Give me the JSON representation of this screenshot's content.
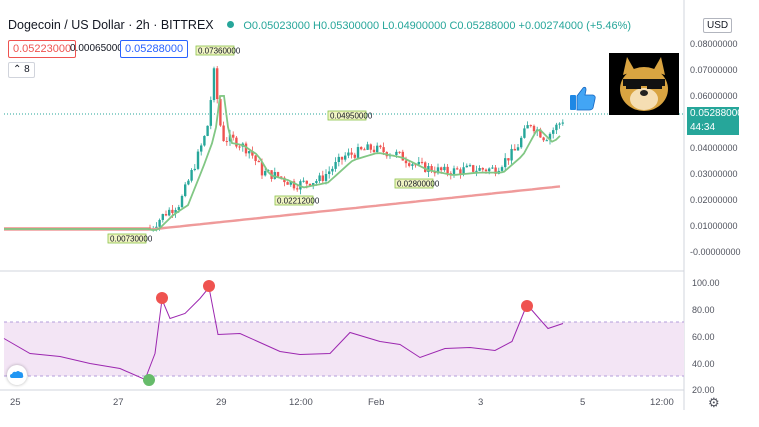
{
  "header": {
    "title": "Dogecoin / US Dollar · 2h · BITTREX",
    "ohlc": "O0.05023000 H0.05300000 L0.04900000 C0.05288000 +0.00274000 (+5.46%)"
  },
  "quote": {
    "bid": "0.05223000",
    "spread": "0.00065000",
    "ask": "0.05288000"
  },
  "indicator_toggle": {
    "label": "8"
  },
  "currency": "USD",
  "price_axis": {
    "ticks": [
      "0.08000000",
      "0.07000000",
      "0.06000000",
      "0.05000000",
      "0.04000000",
      "0.03000000",
      "0.02000000",
      "0.01000000",
      "-0.00000000"
    ],
    "last_price": "0.05288000",
    "countdown": "44:34"
  },
  "rsi_axis": {
    "ticks": [
      "100.00",
      "80.00",
      "60.00",
      "40.00",
      "20.00"
    ]
  },
  "time_axis": {
    "ticks": [
      "25",
      "27",
      "29",
      "12:00",
      "Feb",
      "3",
      "5",
      "12:00"
    ]
  },
  "annotations": {
    "high": "0.07360000",
    "low1": "0.00730000",
    "low2": "0.02212000",
    "high2": "0.04950000",
    "low3": "0.02800000"
  },
  "colors": {
    "up": "#26a69a",
    "down": "#ef5350",
    "ma_short": "#81c784",
    "ma_long": "#ef9a9a",
    "rsi_line": "#9c27b0",
    "rsi_band": "#f3e5f5"
  },
  "icons": [
    "thumbs-up-icon",
    "doge-image",
    "settings-icon",
    "cloud-icon"
  ]
}
